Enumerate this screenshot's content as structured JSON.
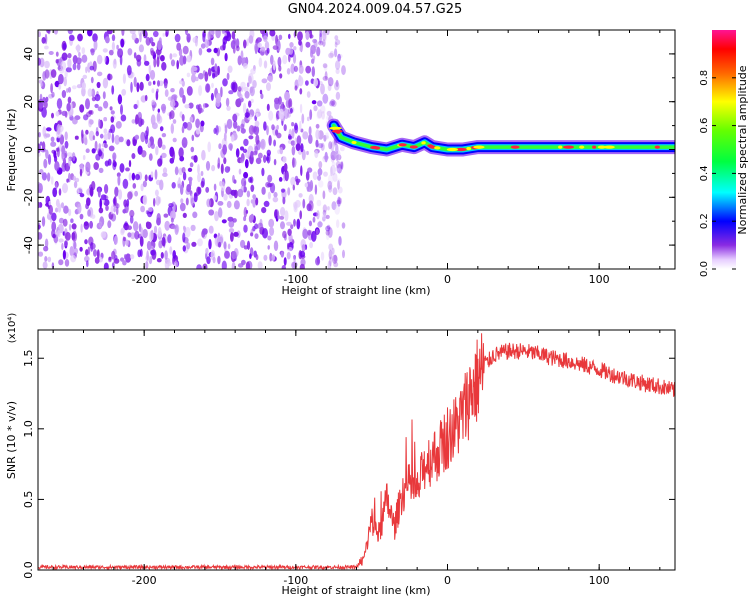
{
  "title": "GN04.2024.009.04.57.G25",
  "chart_data": [
    {
      "type": "heatmap",
      "xlabel": "Height of straight line (km)",
      "ylabel": "Frequency (Hz)",
      "xlim": [
        -270,
        150
      ],
      "ylim": [
        -50,
        50
      ],
      "xticks": [
        -200,
        -100,
        0,
        100
      ],
      "yticks": [
        -40,
        -20,
        0,
        20,
        40
      ],
      "colorbar": {
        "label": "Normalized spectral amplitude",
        "range": [
          0.0,
          1.0
        ],
        "ticks": [
          "0.0",
          "0.2",
          "0.4",
          "0.6",
          "0.8"
        ]
      },
      "noise_region_x": [
        -270,
        -75
      ],
      "signal_track": [
        {
          "x": -75,
          "y": 10
        },
        {
          "x": -70,
          "y": 5
        },
        {
          "x": -62,
          "y": 3
        },
        {
          "x": -50,
          "y": 1
        },
        {
          "x": -40,
          "y": 0
        },
        {
          "x": -30,
          "y": 2
        },
        {
          "x": -22,
          "y": 1
        },
        {
          "x": -15,
          "y": 3
        },
        {
          "x": -10,
          "y": 1
        },
        {
          "x": 0,
          "y": 0
        },
        {
          "x": 10,
          "y": 0
        },
        {
          "x": 20,
          "y": 1
        },
        {
          "x": 50,
          "y": 1
        },
        {
          "x": 80,
          "y": 1
        },
        {
          "x": 110,
          "y": 1
        },
        {
          "x": 150,
          "y": 1
        }
      ]
    },
    {
      "type": "line",
      "xlabel": "Height of straight line (km)",
      "ylabel": "SNR (10 * v/v)",
      "yunit": "(x10⁴)",
      "xlim": [
        -270,
        150
      ],
      "ylim": [
        0.0,
        1.7
      ],
      "xticks": [
        -200,
        -100,
        0,
        100
      ],
      "yticks": [
        "0.0",
        "0.5",
        "1.0",
        "1.5"
      ],
      "series": [
        {
          "color": "#e8383b",
          "points": [
            {
              "x": -270,
              "y": 0.02
            },
            {
              "x": -200,
              "y": 0.02
            },
            {
              "x": -100,
              "y": 0.02
            },
            {
              "x": -60,
              "y": 0.02
            },
            {
              "x": -55,
              "y": 0.08
            },
            {
              "x": -50,
              "y": 0.35
            },
            {
              "x": -45,
              "y": 0.25
            },
            {
              "x": -40,
              "y": 0.5
            },
            {
              "x": -35,
              "y": 0.3
            },
            {
              "x": -30,
              "y": 0.55
            },
            {
              "x": -25,
              "y": 0.6
            },
            {
              "x": -20,
              "y": 0.55
            },
            {
              "x": -15,
              "y": 0.75
            },
            {
              "x": -10,
              "y": 0.8
            },
            {
              "x": -5,
              "y": 0.85
            },
            {
              "x": 0,
              "y": 0.95
            },
            {
              "x": 5,
              "y": 1.0
            },
            {
              "x": 10,
              "y": 1.1
            },
            {
              "x": 15,
              "y": 1.25
            },
            {
              "x": 20,
              "y": 1.35
            },
            {
              "x": 25,
              "y": 1.45
            },
            {
              "x": 30,
              "y": 1.52
            },
            {
              "x": 40,
              "y": 1.55
            },
            {
              "x": 50,
              "y": 1.55
            },
            {
              "x": 60,
              "y": 1.53
            },
            {
              "x": 70,
              "y": 1.5
            },
            {
              "x": 80,
              "y": 1.48
            },
            {
              "x": 90,
              "y": 1.45
            },
            {
              "x": 100,
              "y": 1.42
            },
            {
              "x": 110,
              "y": 1.38
            },
            {
              "x": 120,
              "y": 1.35
            },
            {
              "x": 130,
              "y": 1.32
            },
            {
              "x": 140,
              "y": 1.3
            },
            {
              "x": 150,
              "y": 1.27
            }
          ]
        }
      ]
    }
  ]
}
